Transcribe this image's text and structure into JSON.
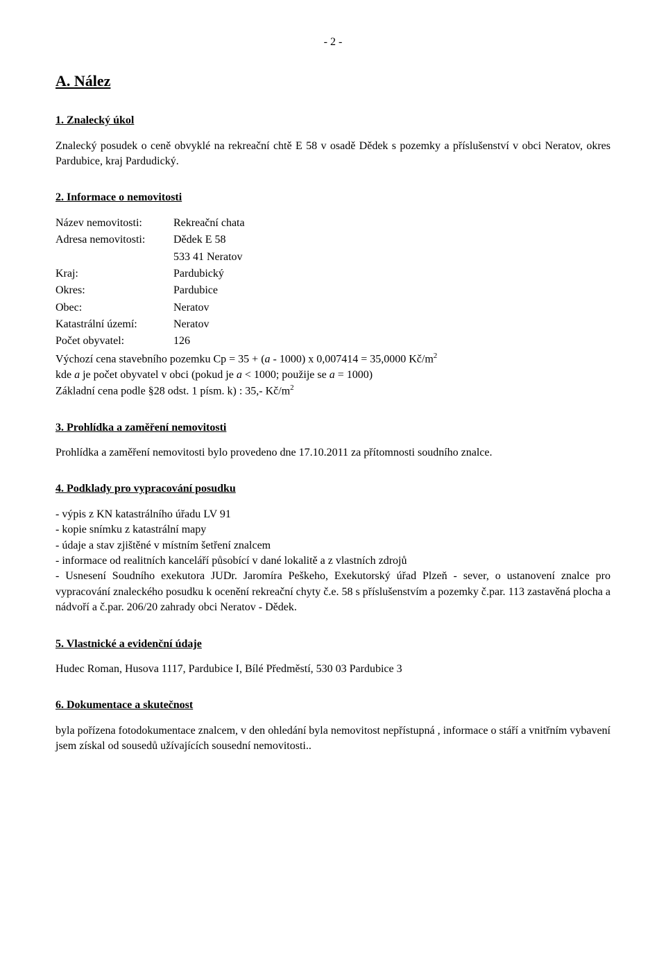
{
  "page_number": "- 2 -",
  "main_heading": "A. Nález",
  "section1": {
    "heading": "1. Znalecký úkol",
    "text": "Znalecký posudek o ceně obvyklé na rekreační chtě E 58 v osadě Dědek s pozemky a příslušenství v obci Neratov, okres Pardubice, kraj Pardudický."
  },
  "section2": {
    "heading": "2. Informace o nemovitosti",
    "name_label": "Název nemovitosti:",
    "name_value": "Rekreační chata",
    "address_label": "Adresa nemovitosti:",
    "address_value1": "Dědek E 58",
    "address_value2": "533 41 Neratov",
    "region_label": "Kraj:",
    "region_value": "Pardubický",
    "district_label": "Okres:",
    "district_value": "Pardubice",
    "municipality_label": "Obec:",
    "municipality_value": "Neratov",
    "cadastral_label": "Katastrální území:",
    "cadastral_value": "Neratov",
    "population_label": "Počet obyvatel:",
    "population_value": "126",
    "formula_prefix": "Výchozí cena stavebního pozemku Cp = 35 + (",
    "formula_a1": "a",
    "formula_mid1": " - 1000) x 0,007414 = 35,0000 Kč/m",
    "formula_sup1": "2",
    "formula_line2_prefix": "kde ",
    "formula_a2": "a",
    "formula_line2_mid": " je počet obyvatel v obci (pokud je ",
    "formula_a3": "a",
    "formula_line2_mid2": " < 1000; použije se ",
    "formula_a4": "a",
    "formula_line2_end": " = 1000)",
    "formula_line3_prefix": "Základní cena podle §28 odst. 1 písm. k) : 35,- Kč/m",
    "formula_sup2": "2"
  },
  "section3": {
    "heading": "3. Prohlídka a zaměření nemovitosti",
    "text": "Prohlídka a zaměření nemovitosti bylo provedeno dne 17.10.2011 za přítomnosti soudního znalce."
  },
  "section4": {
    "heading": "4. Podklady pro vypracování posudku",
    "item1": "- výpis z KN katastrálního úřadu LV 91",
    "item2": "- kopie snímku z katastrální mapy",
    "item3": "- údaje a stav  zjištěné v místním šetření  znalcem",
    "item4": "- informace od realitních kanceláří působící v dané lokalitě  a z vlastních zdrojů",
    "item5": "- Usnesení Soudního exekutora JUDr. Jaromíra Peškeho, Exekutorský úřad Plzeň - sever, o ustanovení znalce pro vypracování znaleckého posudku k ocenění rekreační chyty č.e. 58 s příslušenstvím a pozemky č.par. 113 zastavěná plocha a nádvoří a č.par. 206/20 zahrady  obci Neratov - Dědek."
  },
  "section5": {
    "heading": "5. Vlastnické a evidenční údaje",
    "text": "Hudec Roman, Husova 1117, Pardubice I, Bílé Předměstí, 530 03 Pardubice 3"
  },
  "section6": {
    "heading": "6. Dokumentace a skutečnost",
    "text": " byla pořízena fotodokumentace znalcem, v den ohledání byla nemovitost  nepřístupná , informace o stáří a vnitřním vybavení jsem získal od sousedů užívajících sousední  nemovitosti.."
  }
}
